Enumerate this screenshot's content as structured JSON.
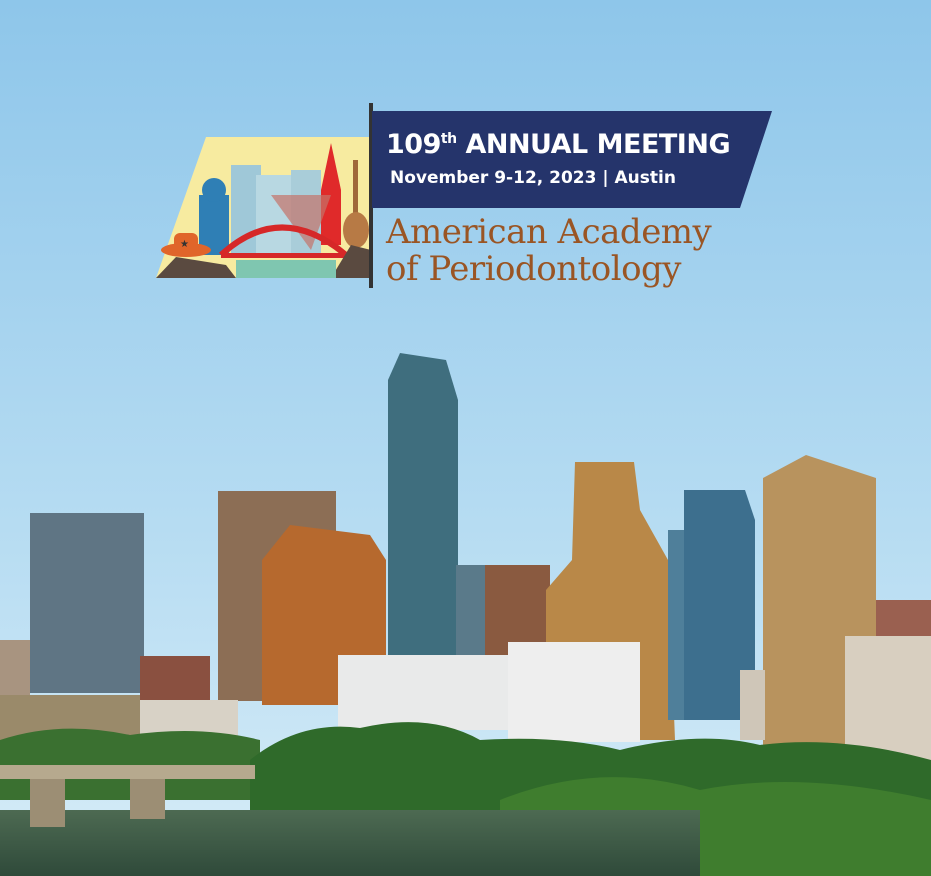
{
  "logo": {
    "edition": "109",
    "edition_suffix": "th",
    "title": "ANNUAL MEETING",
    "dates": "November 9-12, 2023 | Austin",
    "org_line1": "American Academy",
    "org_line2": "of Periodontology"
  },
  "colors": {
    "banner": "#25346b",
    "org_text": "#9a5524",
    "sky": "#8cc6ea"
  },
  "icons": [
    "capitol-icon",
    "bridge-icon",
    "guitar-icon",
    "cowboy-hat-icon",
    "star-icon"
  ]
}
